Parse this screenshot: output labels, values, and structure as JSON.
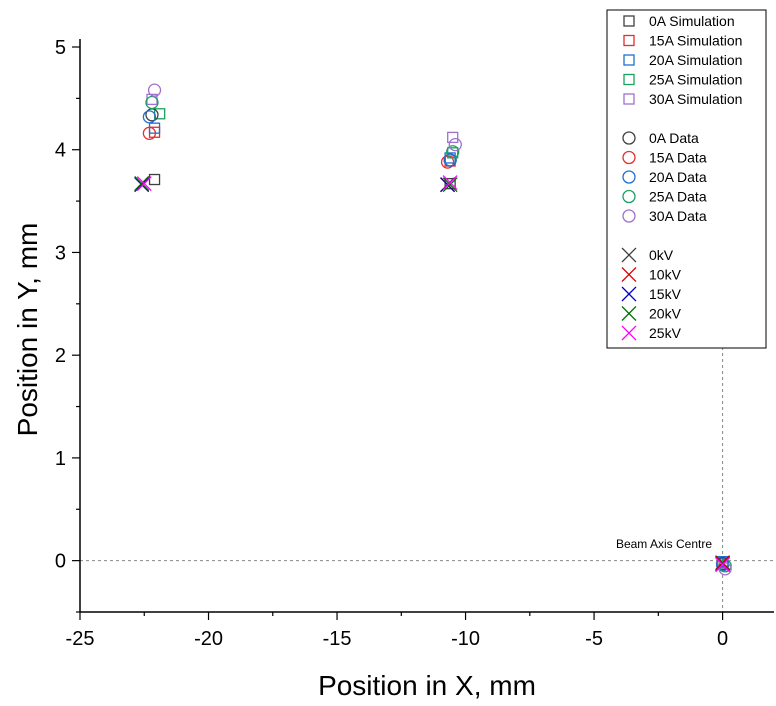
{
  "chart_data": {
    "type": "scatter",
    "xlabel": "Position in X, mm",
    "ylabel": "Position in Y, mm",
    "xlim": [
      -25,
      2
    ],
    "ylim": [
      -0.5,
      5
    ],
    "xticks": [
      -25,
      -20,
      -15,
      -10,
      -5,
      0
    ],
    "yticks": [
      0,
      1,
      2,
      3,
      4,
      5
    ],
    "grid": false,
    "legend_position": "top-right",
    "reference_lines": {
      "x": 0,
      "y": 0,
      "style": "dashed"
    },
    "annotation": "Beam Axis Centre",
    "series": [
      {
        "name": "0A Simulation",
        "marker": "square",
        "color": "#404040",
        "points": [
          [
            -22.1,
            3.71
          ],
          [
            -10.6,
            3.67
          ],
          [
            0,
            -0.01
          ]
        ]
      },
      {
        "name": "15A Simulation",
        "marker": "square",
        "color": "#e03030",
        "points": [
          [
            -22.1,
            4.17
          ],
          [
            -10.6,
            3.89
          ],
          [
            0,
            -0.02
          ]
        ]
      },
      {
        "name": "20A Simulation",
        "marker": "square",
        "color": "#1f6fd0",
        "points": [
          [
            -22.1,
            4.21
          ],
          [
            -10.6,
            3.92
          ],
          [
            0,
            -0.01
          ]
        ]
      },
      {
        "name": "25A Simulation",
        "marker": "square",
        "color": "#1aa060",
        "points": [
          [
            -21.9,
            4.35
          ],
          [
            -10.5,
            3.97
          ],
          [
            0,
            -0.02
          ]
        ]
      },
      {
        "name": "30A Simulation",
        "marker": "square",
        "color": "#a070d0",
        "points": [
          [
            -22.2,
            4.49
          ],
          [
            -10.5,
            4.12
          ],
          [
            0,
            -0.03
          ]
        ]
      },
      {
        "name": "0A Data",
        "marker": "circle",
        "color": "#404040",
        "points": [
          [
            -22.2,
            4.34
          ],
          [
            -10.6,
            3.9
          ],
          [
            0,
            -0.03
          ]
        ]
      },
      {
        "name": "15A Data",
        "marker": "circle",
        "color": "#e03030",
        "points": [
          [
            -22.3,
            4.16
          ],
          [
            -10.7,
            3.88
          ],
          [
            0,
            -0.04
          ]
        ]
      },
      {
        "name": "20A Data",
        "marker": "circle",
        "color": "#1f6fd0",
        "points": [
          [
            -22.3,
            4.32
          ],
          [
            -10.6,
            3.9
          ],
          [
            0,
            -0.04
          ]
        ]
      },
      {
        "name": "25A Data",
        "marker": "circle",
        "color": "#1aa060",
        "points": [
          [
            -22.2,
            4.46
          ],
          [
            -10.5,
            3.98
          ],
          [
            0.1,
            -0.05
          ]
        ]
      },
      {
        "name": "30A Data",
        "marker": "circle",
        "color": "#a070d0",
        "points": [
          [
            -22.1,
            4.58
          ],
          [
            -10.4,
            4.05
          ],
          [
            0.1,
            -0.08
          ]
        ]
      },
      {
        "name": "0kV",
        "marker": "cross",
        "color": "#404040",
        "points": [
          [
            -22.6,
            3.67
          ],
          [
            -10.7,
            3.66
          ],
          [
            0,
            -0.02
          ]
        ]
      },
      {
        "name": "10kV",
        "marker": "cross",
        "color": "#e00000",
        "points": [
          [
            -22.6,
            3.67
          ],
          [
            -10.7,
            3.66
          ],
          [
            0,
            -0.02
          ]
        ]
      },
      {
        "name": "15kV",
        "marker": "cross",
        "color": "#0000c8",
        "points": [
          [
            -22.6,
            3.66
          ],
          [
            -10.7,
            3.66
          ],
          [
            0,
            -0.03
          ]
        ]
      },
      {
        "name": "20kV",
        "marker": "cross",
        "color": "#007000",
        "points": [
          [
            -22.6,
            3.67
          ],
          [
            -10.6,
            3.66
          ],
          [
            0,
            -0.03
          ]
        ]
      },
      {
        "name": "25kV",
        "marker": "cross",
        "color": "#ff00ff",
        "points": [
          [
            -22.5,
            3.67
          ],
          [
            -10.6,
            3.68
          ],
          [
            0,
            -0.04
          ]
        ]
      }
    ]
  }
}
